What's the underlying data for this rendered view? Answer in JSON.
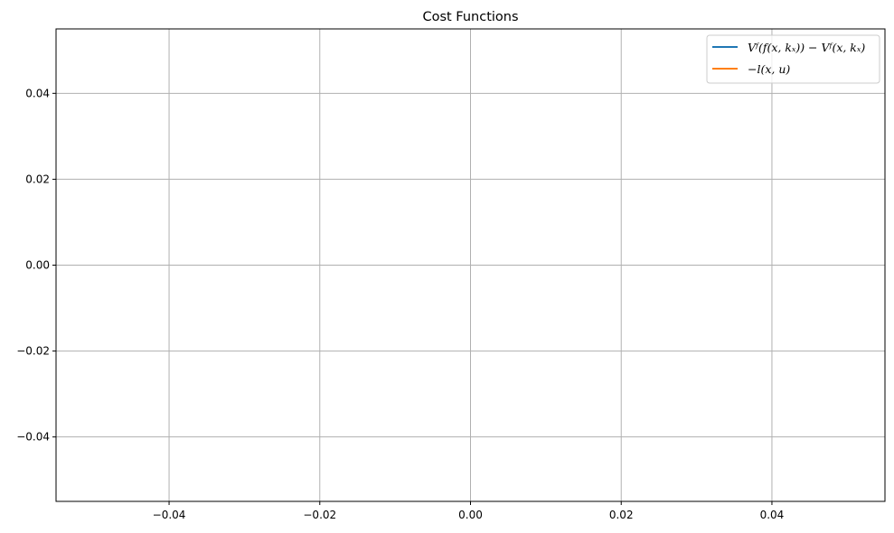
{
  "chart_data": {
    "type": "line",
    "title": "Cost Functions",
    "xlabel": "",
    "ylabel": "",
    "xlim": [
      -0.055,
      0.055
    ],
    "ylim": [
      -0.055,
      0.055
    ],
    "xticks": [
      -0.04,
      -0.02,
      0.0,
      0.02,
      0.04
    ],
    "xtick_labels": [
      "−0.04",
      "−0.02",
      "0.00",
      "0.02",
      "0.04"
    ],
    "yticks": [
      0.04,
      0.02,
      0.0,
      -0.02,
      -0.04
    ],
    "ytick_labels": [
      "0.04",
      "0.02",
      "0.00",
      "−0.02",
      "−0.04"
    ],
    "grid": true,
    "legend_position": "top-right",
    "series": [
      {
        "name": "Vᶠ(f(x, kₓ)) − Vᶠ(x, kₓ)",
        "color": "#1f77b4",
        "x": [],
        "y": []
      },
      {
        "name": "−l(x, u)",
        "color": "#ff7f0e",
        "x": [],
        "y": []
      }
    ]
  }
}
